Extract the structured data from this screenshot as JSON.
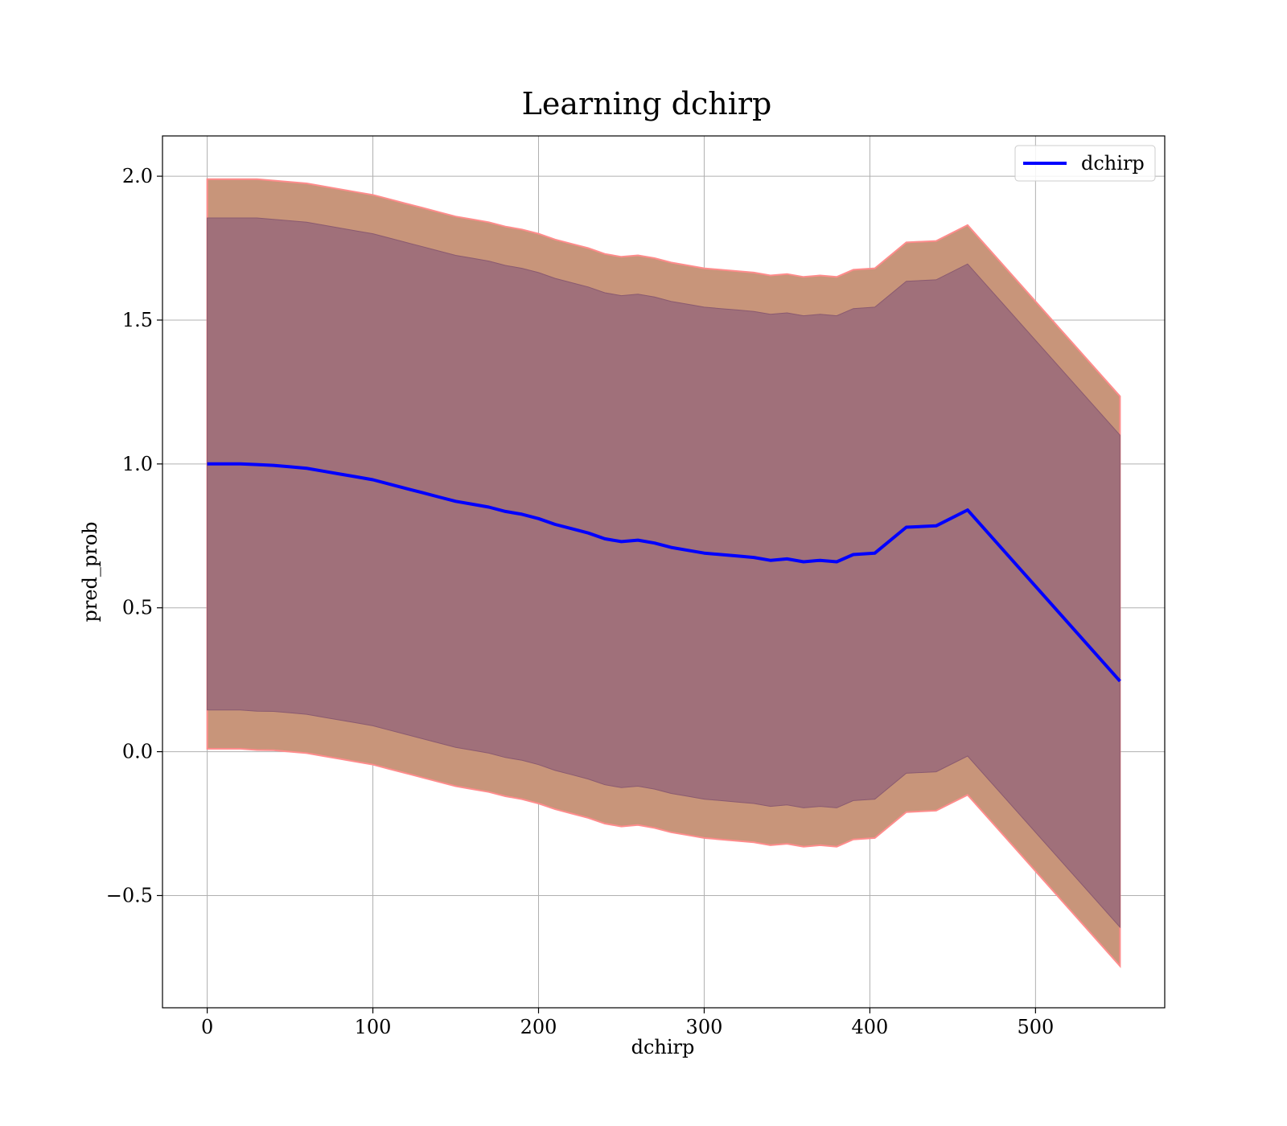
{
  "chart_data": {
    "type": "line",
    "title": "Learning dchirp",
    "xlabel": "dchirp",
    "ylabel": "pred_prob",
    "xlim": [
      -27,
      578
    ],
    "ylim": [
      -0.89,
      2.14
    ],
    "xticks": [
      0,
      100,
      200,
      300,
      400,
      500
    ],
    "xtick_labels": [
      "0",
      "100",
      "200",
      "300",
      "400",
      "500"
    ],
    "yticks": [
      -0.5,
      0.0,
      0.5,
      1.0,
      1.5,
      2.0
    ],
    "ytick_labels": [
      "−0.5",
      "0.0",
      "0.5",
      "1.0",
      "1.5",
      "2.0"
    ],
    "grid": true,
    "legend": {
      "placement": "upper right",
      "entries": [
        "dchirp"
      ]
    },
    "colors": {
      "line": "#0000ff",
      "outer_band": "#c8957a",
      "outer_band_edge": "#ff8c8c",
      "inner_band": "#a0707a",
      "grid": "#b0b0b0"
    },
    "series": [
      {
        "name": "dchirp",
        "x": [
          0,
          10,
          20,
          30,
          40,
          50,
          60,
          70,
          80,
          90,
          100,
          110,
          120,
          130,
          140,
          150,
          160,
          170,
          180,
          190,
          200,
          210,
          220,
          230,
          240,
          250,
          260,
          270,
          280,
          290,
          300,
          310,
          320,
          330,
          340,
          350,
          360,
          370,
          380,
          390,
          403,
          422,
          440,
          459,
          551
        ],
        "y": [
          1.0,
          1.0,
          1.0,
          0.998,
          0.995,
          0.99,
          0.985,
          0.975,
          0.965,
          0.955,
          0.945,
          0.93,
          0.915,
          0.9,
          0.885,
          0.87,
          0.86,
          0.85,
          0.835,
          0.825,
          0.81,
          0.79,
          0.775,
          0.76,
          0.74,
          0.73,
          0.735,
          0.725,
          0.71,
          0.7,
          0.69,
          0.685,
          0.68,
          0.675,
          0.665,
          0.67,
          0.66,
          0.665,
          0.66,
          0.685,
          0.69,
          0.78,
          0.785,
          0.84,
          0.245
        ]
      }
    ],
    "bands": [
      {
        "name": "outer",
        "x": [
          0,
          10,
          20,
          30,
          40,
          50,
          60,
          70,
          80,
          90,
          100,
          110,
          120,
          130,
          140,
          150,
          160,
          170,
          180,
          190,
          200,
          210,
          220,
          230,
          240,
          250,
          260,
          270,
          280,
          290,
          300,
          310,
          320,
          330,
          340,
          350,
          360,
          370,
          380,
          390,
          403,
          422,
          440,
          459,
          551
        ],
        "upper": [
          1.99,
          1.99,
          1.99,
          1.99,
          1.985,
          1.98,
          1.975,
          1.965,
          1.955,
          1.945,
          1.935,
          1.92,
          1.905,
          1.89,
          1.875,
          1.86,
          1.85,
          1.84,
          1.825,
          1.815,
          1.8,
          1.78,
          1.765,
          1.75,
          1.73,
          1.72,
          1.725,
          1.715,
          1.7,
          1.69,
          1.68,
          1.675,
          1.67,
          1.665,
          1.655,
          1.66,
          1.65,
          1.655,
          1.65,
          1.675,
          1.68,
          1.77,
          1.775,
          1.83,
          1.235
        ],
        "lower": [
          0.01,
          0.01,
          0.01,
          0.006,
          0.005,
          0.0,
          -0.005,
          -0.015,
          -0.025,
          -0.035,
          -0.045,
          -0.06,
          -0.075,
          -0.09,
          -0.105,
          -0.12,
          -0.13,
          -0.14,
          -0.155,
          -0.165,
          -0.18,
          -0.2,
          -0.215,
          -0.23,
          -0.25,
          -0.26,
          -0.255,
          -0.265,
          -0.28,
          -0.29,
          -0.3,
          -0.305,
          -0.31,
          -0.315,
          -0.325,
          -0.32,
          -0.33,
          -0.325,
          -0.33,
          -0.305,
          -0.3,
          -0.21,
          -0.205,
          -0.15,
          -0.745
        ]
      },
      {
        "name": "inner",
        "x": [
          0,
          10,
          20,
          30,
          40,
          50,
          60,
          70,
          80,
          90,
          100,
          110,
          120,
          130,
          140,
          150,
          160,
          170,
          180,
          190,
          200,
          210,
          220,
          230,
          240,
          250,
          260,
          270,
          280,
          290,
          300,
          310,
          320,
          330,
          340,
          350,
          360,
          370,
          380,
          390,
          403,
          422,
          440,
          459,
          551
        ],
        "upper": [
          1.855,
          1.855,
          1.855,
          1.855,
          1.85,
          1.845,
          1.84,
          1.83,
          1.82,
          1.81,
          1.8,
          1.785,
          1.77,
          1.755,
          1.74,
          1.725,
          1.715,
          1.705,
          1.69,
          1.68,
          1.665,
          1.645,
          1.63,
          1.615,
          1.595,
          1.585,
          1.59,
          1.58,
          1.565,
          1.555,
          1.545,
          1.54,
          1.535,
          1.53,
          1.52,
          1.525,
          1.515,
          1.52,
          1.515,
          1.54,
          1.545,
          1.635,
          1.64,
          1.695,
          1.1
        ],
        "lower": [
          0.145,
          0.145,
          0.145,
          0.141,
          0.14,
          0.135,
          0.13,
          0.12,
          0.11,
          0.1,
          0.09,
          0.075,
          0.06,
          0.045,
          0.03,
          0.015,
          0.005,
          -0.005,
          -0.02,
          -0.03,
          -0.045,
          -0.065,
          -0.08,
          -0.095,
          -0.115,
          -0.125,
          -0.12,
          -0.13,
          -0.145,
          -0.155,
          -0.165,
          -0.17,
          -0.175,
          -0.18,
          -0.19,
          -0.185,
          -0.195,
          -0.19,
          -0.195,
          -0.17,
          -0.165,
          -0.075,
          -0.07,
          -0.015,
          -0.61
        ]
      }
    ]
  }
}
